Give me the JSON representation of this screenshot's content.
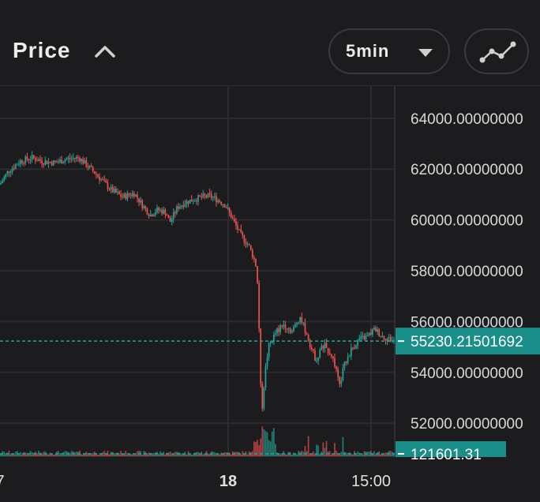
{
  "header": {
    "title": "Price",
    "interval": "5min",
    "icons": {
      "collapse": "chevron-up-icon",
      "dropdown": "caret-down-icon",
      "chart_type": "line-chart-icon"
    }
  },
  "colors": {
    "background": "#1c1c1f",
    "grid": "#2c2c30",
    "up": "#26a69a",
    "down": "#ef5350",
    "accent_tag": "#1a8f8a",
    "price_line": "#26a69a"
  },
  "chart_data": {
    "type": "candlestick",
    "ylim": [
      50700,
      65300
    ],
    "y_ticks": [
      {
        "value": 64000,
        "label": "64000.00000000"
      },
      {
        "value": 62000,
        "label": "62000.00000000"
      },
      {
        "value": 60000,
        "label": "60000.00000000"
      },
      {
        "value": 58000,
        "label": "58000.00000000"
      },
      {
        "value": 56000,
        "label": "56000.00000000"
      },
      {
        "value": 54000,
        "label": "54000.00000000"
      },
      {
        "value": 52000,
        "label": "52000.00000000"
      }
    ],
    "x_ticks": [
      {
        "label": "7",
        "pos": 0.0
      },
      {
        "label": "18",
        "pos": 0.578
      },
      {
        "label": "15:00",
        "pos": 0.94
      }
    ],
    "current_price": 55230.21501692,
    "current_price_label": "55230.21501692",
    "current_volume_label": "121601.31",
    "price_path": [
      [
        0.0,
        61400
      ],
      [
        0.02,
        61900
      ],
      [
        0.05,
        62300
      ],
      [
        0.08,
        62450
      ],
      [
        0.11,
        62300
      ],
      [
        0.14,
        62250
      ],
      [
        0.17,
        62400
      ],
      [
        0.2,
        62450
      ],
      [
        0.22,
        62150
      ],
      [
        0.25,
        61700
      ],
      [
        0.28,
        61200
      ],
      [
        0.31,
        60900
      ],
      [
        0.34,
        61050
      ],
      [
        0.36,
        60600
      ],
      [
        0.38,
        60200
      ],
      [
        0.4,
        60400
      ],
      [
        0.42,
        60300
      ],
      [
        0.43,
        59900
      ],
      [
        0.45,
        60500
      ],
      [
        0.47,
        60700
      ],
      [
        0.5,
        60850
      ],
      [
        0.53,
        60950
      ],
      [
        0.55,
        60800
      ],
      [
        0.57,
        60600
      ],
      [
        0.59,
        60000
      ],
      [
        0.61,
        59400
      ],
      [
        0.63,
        59000
      ],
      [
        0.65,
        58200
      ],
      [
        0.655,
        56500
      ],
      [
        0.66,
        53500
      ],
      [
        0.665,
        52600
      ],
      [
        0.67,
        53800
      ],
      [
        0.68,
        55000
      ],
      [
        0.7,
        55600
      ],
      [
        0.72,
        55900
      ],
      [
        0.74,
        55600
      ],
      [
        0.76,
        56200
      ],
      [
        0.77,
        55800
      ],
      [
        0.79,
        54900
      ],
      [
        0.8,
        54500
      ],
      [
        0.82,
        55100
      ],
      [
        0.84,
        54700
      ],
      [
        0.85,
        54200
      ],
      [
        0.86,
        53400
      ],
      [
        0.87,
        54200
      ],
      [
        0.89,
        54900
      ],
      [
        0.91,
        55300
      ],
      [
        0.93,
        55400
      ],
      [
        0.95,
        55700
      ],
      [
        0.97,
        55400
      ],
      [
        1.0,
        55230
      ]
    ]
  }
}
